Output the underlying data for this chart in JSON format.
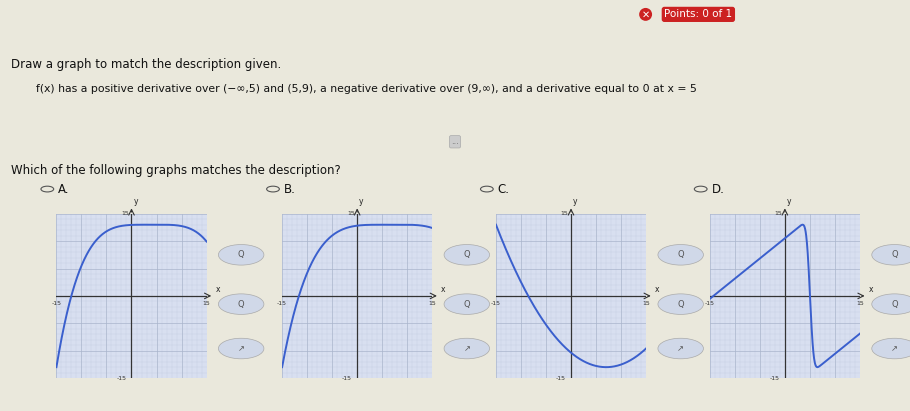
{
  "bg_color": "#eae8dc",
  "graph_bg": "#d8dff0",
  "grid_color": "#aab4cc",
  "curve_color": "#3a5fcd",
  "axis_color": "#333333",
  "title_text": "Draw a graph to match the description given.",
  "desc_text": "f(x) has a positive derivative over (−∞,5) and (5,9), a negative derivative over (9,∞), and a derivative equal to 0 at x = 5",
  "question_text": "Which of the following graphs matches the description?",
  "options": [
    "A.",
    "B.",
    "C.",
    "D."
  ],
  "points_text": "Points: 0 of 1",
  "xlim": [
    -15,
    15
  ],
  "ylim": [
    -15,
    15
  ],
  "header_bg": "#1a56a0",
  "header_text_color": "#ffffff",
  "points_badge_color": "#cc2222"
}
